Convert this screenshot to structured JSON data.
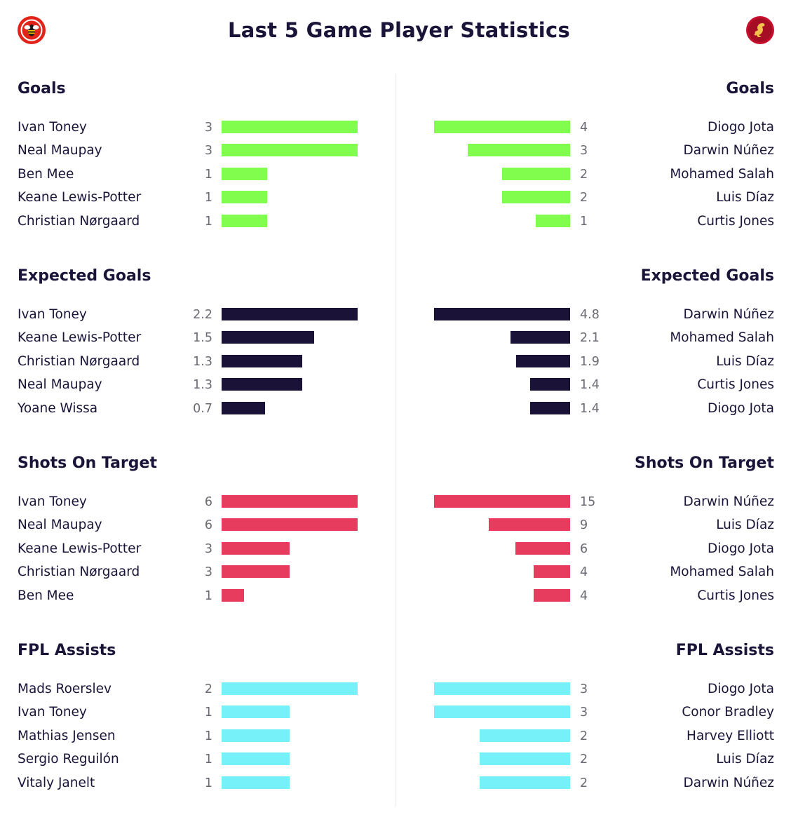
{
  "title": "Last 5 Game Player Statistics",
  "icons": {
    "left_crest": "bee-crest-icon",
    "right_crest": "liverbird-crest-icon"
  },
  "colors": {
    "brentford_red": "#e2231a",
    "liverpool_red": "#c8102e",
    "goals": "#80fd4d",
    "expected_goals": "#1b1337",
    "shots_on_target": "#e73c5e",
    "fpl_assists": "#76f0f9"
  },
  "chart_data": [
    {
      "type": "bar",
      "side": "left",
      "title": "Goals",
      "color": "#80fd4d",
      "categories": [
        "Ivan Toney",
        "Neal Maupay",
        "Ben Mee",
        "Keane Lewis-Potter",
        "Christian Nørgaard"
      ],
      "values": [
        3,
        3,
        1,
        1,
        1
      ]
    },
    {
      "type": "bar",
      "side": "right",
      "title": "Goals",
      "color": "#80fd4d",
      "categories": [
        "Diogo Jota",
        "Darwin Núñez",
        "Mohamed Salah",
        "Luis Díaz",
        "Curtis Jones"
      ],
      "values": [
        4,
        3,
        2,
        2,
        1
      ]
    },
    {
      "type": "bar",
      "side": "left",
      "title": "Expected Goals",
      "color": "#1b1337",
      "categories": [
        "Ivan Toney",
        "Keane Lewis-Potter",
        "Christian Nørgaard",
        "Neal Maupay",
        "Yoane Wissa"
      ],
      "values": [
        2.2,
        1.5,
        1.3,
        1.3,
        0.7
      ]
    },
    {
      "type": "bar",
      "side": "right",
      "title": "Expected Goals",
      "color": "#1b1337",
      "categories": [
        "Darwin Núñez",
        "Mohamed Salah",
        "Luis Díaz",
        "Curtis Jones",
        "Diogo Jota"
      ],
      "values": [
        4.8,
        2.1,
        1.9,
        1.4,
        1.4
      ]
    },
    {
      "type": "bar",
      "side": "left",
      "title": "Shots On Target",
      "color": "#e73c5e",
      "categories": [
        "Ivan Toney",
        "Neal Maupay",
        "Keane Lewis-Potter",
        "Christian Nørgaard",
        "Ben Mee"
      ],
      "values": [
        6,
        6,
        3,
        3,
        1
      ]
    },
    {
      "type": "bar",
      "side": "right",
      "title": "Shots On Target",
      "color": "#e73c5e",
      "categories": [
        "Darwin Núñez",
        "Luis Díaz",
        "Diogo Jota",
        "Mohamed Salah",
        "Curtis Jones"
      ],
      "values": [
        15,
        9,
        6,
        4,
        4
      ]
    },
    {
      "type": "bar",
      "side": "left",
      "title": "FPL Assists",
      "color": "#76f0f9",
      "categories": [
        "Mads Roerslev",
        "Ivan Toney",
        "Mathias Jensen",
        "Sergio Reguilón",
        "Vitaly Janelt"
      ],
      "values": [
        2,
        1,
        1,
        1,
        1
      ]
    },
    {
      "type": "bar",
      "side": "right",
      "title": "FPL Assists",
      "color": "#76f0f9",
      "categories": [
        "Diogo Jota",
        "Conor Bradley",
        "Harvey Elliott",
        "Luis Díaz",
        "Darwin Núñez"
      ],
      "values": [
        3,
        3,
        2,
        2,
        2
      ]
    }
  ]
}
